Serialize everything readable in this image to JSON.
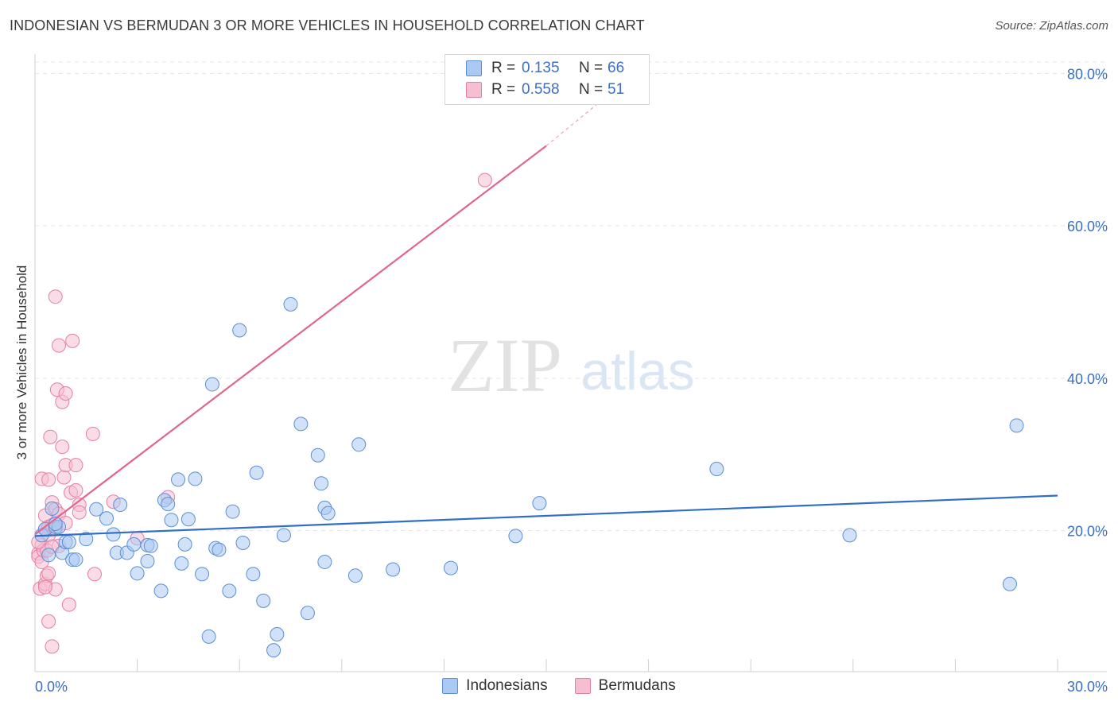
{
  "header": {
    "title": "INDONESIAN VS BERMUDAN 3 OR MORE VEHICLES IN HOUSEHOLD CORRELATION CHART",
    "source": "Source: ZipAtlas.com"
  },
  "watermark": {
    "zip": "ZIP",
    "atlas": "atlas"
  },
  "legend": {
    "r_label": "R =",
    "n_label": "N =",
    "rows": [
      {
        "name": "Indonesians",
        "r": "0.135",
        "n": "66"
      },
      {
        "name": "Bermudans",
        "r": "0.558",
        "n": "51"
      }
    ]
  },
  "colors": {
    "indonesians_fill": "#aac9f3",
    "indonesians_stroke": "#5b8fd6",
    "indonesians_line": "#2f6fc7",
    "bermudans_fill": "#f6bfd1",
    "bermudans_stroke": "#e57fa3",
    "bermudans_line": "#e0668f",
    "tick_label": "#3a6fc4"
  },
  "chart_data": {
    "type": "scatter",
    "title": "INDONESIAN VS BERMUDAN 3 OR MORE VEHICLES IN HOUSEHOLD CORRELATION CHART",
    "xlabel": "",
    "ylabel": "3 or more Vehicles in Household",
    "xlim": [
      0,
      30
    ],
    "ylim": [
      1.5,
      81.5
    ],
    "x_tick_labels": [
      {
        "value": 0,
        "label": "0.0%"
      },
      {
        "value": 30,
        "label": "30.0%"
      }
    ],
    "y_tick_labels": [
      {
        "value": 20,
        "label": "20.0%"
      },
      {
        "value": 40,
        "label": "40.0%"
      },
      {
        "value": 60,
        "label": "60.0%"
      },
      {
        "value": 80,
        "label": "80.0%"
      }
    ],
    "legend_position": "top-center",
    "series": [
      {
        "name": "Indonesians",
        "trend": {
          "x": [
            0,
            30
          ],
          "y": [
            19.3,
            24.6
          ]
        },
        "points": [
          [
            0.2,
            19.4
          ],
          [
            0.3,
            20.2
          ],
          [
            0.5,
            22.9
          ],
          [
            0.6,
            20.5
          ],
          [
            0.7,
            20.5
          ],
          [
            0.8,
            17.1
          ],
          [
            0.9,
            18.5
          ],
          [
            1.0,
            18.5
          ],
          [
            1.1,
            16.2
          ],
          [
            1.5,
            18.9
          ],
          [
            1.8,
            22.8
          ],
          [
            2.1,
            21.6
          ],
          [
            2.3,
            19.5
          ],
          [
            2.4,
            17.1
          ],
          [
            2.5,
            23.4
          ],
          [
            2.7,
            17.1
          ],
          [
            2.9,
            18.2
          ],
          [
            3.0,
            14.4
          ],
          [
            3.3,
            18.1
          ],
          [
            3.3,
            16.0
          ],
          [
            3.4,
            18.0
          ],
          [
            3.7,
            12.1
          ],
          [
            3.8,
            24.0
          ],
          [
            3.9,
            23.5
          ],
          [
            4.0,
            21.4
          ],
          [
            4.2,
            26.7
          ],
          [
            4.3,
            15.7
          ],
          [
            4.4,
            18.2
          ],
          [
            4.5,
            21.5
          ],
          [
            4.7,
            26.8
          ],
          [
            4.9,
            14.3
          ],
          [
            5.1,
            6.1
          ],
          [
            5.2,
            39.2
          ],
          [
            5.3,
            17.7
          ],
          [
            5.4,
            17.5
          ],
          [
            5.7,
            12.1
          ],
          [
            5.8,
            22.5
          ],
          [
            6.0,
            46.3
          ],
          [
            6.1,
            18.4
          ],
          [
            6.4,
            14.3
          ],
          [
            6.5,
            27.6
          ],
          [
            6.7,
            10.8
          ],
          [
            7.0,
            4.3
          ],
          [
            7.1,
            6.4
          ],
          [
            7.3,
            19.4
          ],
          [
            7.5,
            49.7
          ],
          [
            7.8,
            34.0
          ],
          [
            8.0,
            9.2
          ],
          [
            8.3,
            29.9
          ],
          [
            8.4,
            26.2
          ],
          [
            8.5,
            23.0
          ],
          [
            8.6,
            22.3
          ],
          [
            8.5,
            15.9
          ],
          [
            9.4,
            14.1
          ],
          [
            9.5,
            31.3
          ],
          [
            10.5,
            14.9
          ],
          [
            12.2,
            15.1
          ],
          [
            14.1,
            19.3
          ],
          [
            14.8,
            23.6
          ],
          [
            20.0,
            28.1
          ],
          [
            23.9,
            19.4
          ],
          [
            28.6,
            13.0
          ],
          [
            28.8,
            33.8
          ],
          [
            0.4,
            16.8
          ],
          [
            0.6,
            20.9
          ],
          [
            1.2,
            16.2
          ]
        ]
      },
      {
        "name": "Bermudans",
        "trend": {
          "x": [
            0,
            15.0
          ],
          "y": [
            19.5,
            70.5
          ]
        },
        "trend_dashed": {
          "x": [
            15.0,
            16.5
          ],
          "y": [
            70.5,
            76.0
          ]
        },
        "points": [
          [
            0.1,
            17.0
          ],
          [
            0.1,
            16.6
          ],
          [
            0.15,
            12.4
          ],
          [
            0.2,
            15.9
          ],
          [
            0.2,
            18.1
          ],
          [
            0.2,
            26.8
          ],
          [
            0.25,
            17.4
          ],
          [
            0.3,
            20.2
          ],
          [
            0.3,
            22.0
          ],
          [
            0.3,
            13.0
          ],
          [
            0.35,
            14.1
          ],
          [
            0.35,
            17.4
          ],
          [
            0.4,
            20.5
          ],
          [
            0.4,
            8.1
          ],
          [
            0.4,
            14.4
          ],
          [
            0.4,
            19.4
          ],
          [
            0.4,
            26.7
          ],
          [
            0.45,
            32.3
          ],
          [
            0.5,
            20.7
          ],
          [
            0.5,
            23.7
          ],
          [
            0.5,
            4.8
          ],
          [
            0.6,
            22.8
          ],
          [
            0.6,
            50.7
          ],
          [
            0.6,
            12.3
          ],
          [
            0.6,
            20.2
          ],
          [
            0.65,
            38.5
          ],
          [
            0.7,
            18.0
          ],
          [
            0.7,
            44.3
          ],
          [
            0.7,
            22.2
          ],
          [
            0.8,
            36.9
          ],
          [
            0.8,
            31.0
          ],
          [
            0.85,
            27.0
          ],
          [
            0.9,
            38.0
          ],
          [
            0.9,
            28.6
          ],
          [
            0.9,
            21.0
          ],
          [
            1.0,
            10.3
          ],
          [
            1.05,
            25.0
          ],
          [
            1.1,
            44.9
          ],
          [
            1.2,
            28.6
          ],
          [
            1.2,
            25.3
          ],
          [
            1.3,
            23.4
          ],
          [
            1.3,
            22.4
          ],
          [
            1.7,
            32.7
          ],
          [
            1.75,
            14.3
          ],
          [
            2.3,
            23.8
          ],
          [
            3.0,
            19.0
          ],
          [
            3.9,
            24.4
          ],
          [
            13.2,
            66.0
          ],
          [
            0.1,
            18.5
          ],
          [
            0.3,
            12.6
          ],
          [
            0.5,
            17.9
          ]
        ]
      }
    ]
  }
}
